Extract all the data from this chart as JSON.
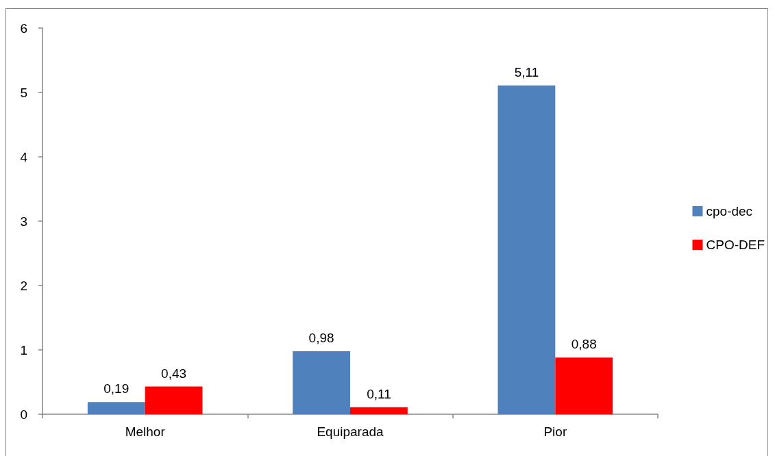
{
  "chart_data": {
    "type": "bar",
    "categories": [
      "Melhor",
      "Equiparada",
      "Pior"
    ],
    "series": [
      {
        "name": "cpo-dec",
        "color": "#4f81bd",
        "values": [
          0.19,
          0.98,
          5.11
        ],
        "value_labels": [
          "0,19",
          "0,98",
          "5,11"
        ]
      },
      {
        "name": "CPO-DEF",
        "color": "#ff0000",
        "values": [
          0.43,
          0.11,
          0.88
        ],
        "value_labels": [
          "0,43",
          "0,11",
          "0,88"
        ]
      }
    ],
    "ylim": [
      0,
      6
    ],
    "yticks": [
      0,
      1,
      2,
      3,
      4,
      5,
      6
    ],
    "grid": false,
    "legend": "right"
  }
}
